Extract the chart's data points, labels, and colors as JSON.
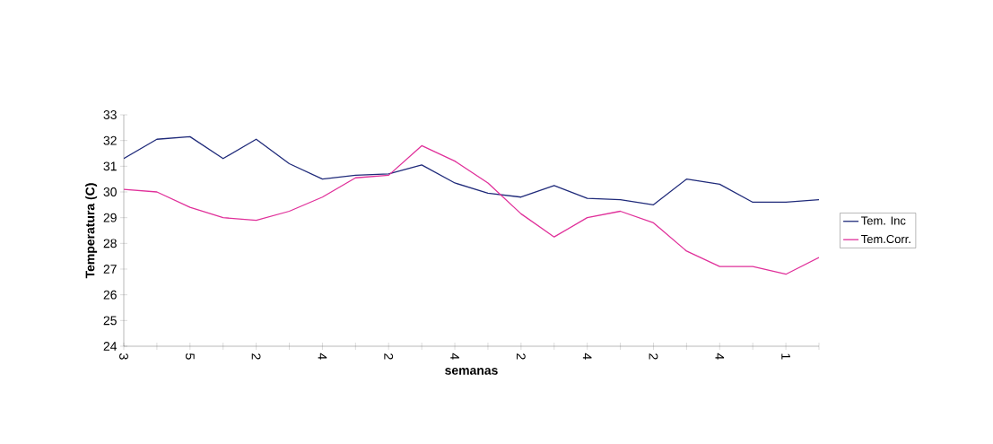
{
  "chart_data": {
    "type": "line",
    "xlabel": "semanas",
    "ylabel": "Temperatura (C)",
    "categories": [
      "3",
      null,
      "5",
      null,
      "2",
      null,
      "4",
      null,
      "2",
      null,
      "4",
      null,
      "2",
      null,
      "4",
      null,
      "2",
      null,
      "4",
      null,
      "1",
      null
    ],
    "series": [
      {
        "name": "Tem. Inc",
        "color": "#1f2a7a",
        "values": [
          31.3,
          32.05,
          32.15,
          31.3,
          32.05,
          31.1,
          30.5,
          30.65,
          30.7,
          31.05,
          30.35,
          29.95,
          29.8,
          30.25,
          29.75,
          29.7,
          29.5,
          30.5,
          30.3,
          29.6,
          29.6,
          29.7
        ]
      },
      {
        "name": "Tem.Corr.",
        "color": "#e0309a",
        "values": [
          30.1,
          30.0,
          29.4,
          29.0,
          28.9,
          29.25,
          29.8,
          30.55,
          30.65,
          31.8,
          31.2,
          30.35,
          29.15,
          28.25,
          29.0,
          29.25,
          28.8,
          27.7,
          27.1,
          27.1,
          26.8,
          27.45
        ]
      }
    ],
    "ylim": [
      24,
      33
    ],
    "yticks": [
      24,
      25,
      26,
      27,
      28,
      29,
      30,
      31,
      32,
      33
    ],
    "legend": "right",
    "grid": false,
    "marker": "none",
    "line_style": "solid"
  }
}
